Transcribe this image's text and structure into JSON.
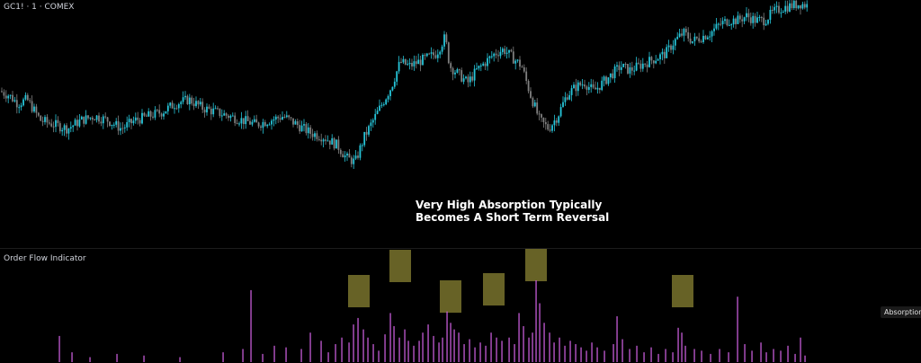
{
  "price_pane": {
    "symbol_label": "GC1! · 1 · COMEX"
  },
  "indicator_pane": {
    "title": "Order Flow Indicator",
    "tag": "Absorption"
  },
  "annotation": {
    "line1": "Very High Absorption Typically",
    "line2": "Becomes A Short Term Reversal"
  },
  "colors": {
    "background": "#000000",
    "candle_up": "#26c6da",
    "candle_down": "#808080",
    "volume_bar": "#c45bd6",
    "highlight_box": "#8a8333"
  },
  "chart_data": [
    {
      "type": "candlestick",
      "title": "GC1! · 1 · COMEX",
      "y_range": [
        0,
        100
      ],
      "trend_points": [
        [
          0,
          58
        ],
        [
          10,
          56
        ],
        [
          20,
          52
        ],
        [
          30,
          54
        ],
        [
          45,
          44
        ],
        [
          60,
          42
        ],
        [
          75,
          40
        ],
        [
          90,
          44
        ],
        [
          105,
          46
        ],
        [
          120,
          44
        ],
        [
          135,
          40
        ],
        [
          150,
          44
        ],
        [
          165,
          46
        ],
        [
          180,
          48
        ],
        [
          195,
          52
        ],
        [
          210,
          54
        ],
        [
          225,
          50
        ],
        [
          240,
          48
        ],
        [
          255,
          46
        ],
        [
          270,
          44
        ],
        [
          285,
          42
        ],
        [
          300,
          44
        ],
        [
          315,
          46
        ],
        [
          330,
          42
        ],
        [
          345,
          38
        ],
        [
          360,
          36
        ],
        [
          375,
          32
        ],
        [
          385,
          26
        ],
        [
          395,
          24
        ],
        [
          405,
          36
        ],
        [
          415,
          44
        ],
        [
          425,
          52
        ],
        [
          435,
          60
        ],
        [
          445,
          72
        ],
        [
          455,
          70
        ],
        [
          465,
          72
        ],
        [
          475,
          74
        ],
        [
          485,
          76
        ],
        [
          495,
          84
        ],
        [
          500,
          70
        ],
        [
          510,
          66
        ],
        [
          520,
          62
        ],
        [
          530,
          68
        ],
        [
          540,
          72
        ],
        [
          550,
          76
        ],
        [
          560,
          78
        ],
        [
          570,
          74
        ],
        [
          580,
          70
        ],
        [
          590,
          56
        ],
        [
          600,
          44
        ],
        [
          610,
          40
        ],
        [
          620,
          46
        ],
        [
          630,
          56
        ],
        [
          640,
          60
        ],
        [
          650,
          62
        ],
        [
          660,
          58
        ],
        [
          670,
          62
        ],
        [
          680,
          66
        ],
        [
          690,
          70
        ],
        [
          700,
          68
        ],
        [
          710,
          70
        ],
        [
          720,
          72
        ],
        [
          730,
          74
        ],
        [
          740,
          76
        ],
        [
          750,
          82
        ],
        [
          760,
          86
        ],
        [
          770,
          82
        ],
        [
          780,
          84
        ],
        [
          790,
          86
        ],
        [
          800,
          90
        ],
        [
          810,
          92
        ],
        [
          820,
          92
        ],
        [
          830,
          94
        ],
        [
          840,
          92
        ],
        [
          850,
          92
        ],
        [
          860,
          96
        ],
        [
          870,
          98
        ],
        [
          880,
          99
        ],
        [
          890,
          100
        ],
        [
          898,
          99
        ]
      ]
    },
    {
      "type": "bar",
      "title": "Order Flow Indicator",
      "y_range": [
        0,
        100
      ],
      "bars": [
        [
          66,
          32
        ],
        [
          80,
          12
        ],
        [
          100,
          6
        ],
        [
          130,
          10
        ],
        [
          160,
          8
        ],
        [
          200,
          6
        ],
        [
          248,
          12
        ],
        [
          270,
          16
        ],
        [
          279,
          88
        ],
        [
          292,
          10
        ],
        [
          305,
          20
        ],
        [
          318,
          18
        ],
        [
          335,
          16
        ],
        [
          345,
          36
        ],
        [
          357,
          26
        ],
        [
          365,
          12
        ],
        [
          373,
          22
        ],
        [
          380,
          30
        ],
        [
          388,
          24
        ],
        [
          393,
          46
        ],
        [
          398,
          54
        ],
        [
          404,
          40
        ],
        [
          409,
          30
        ],
        [
          415,
          22
        ],
        [
          421,
          14
        ],
        [
          428,
          34
        ],
        [
          434,
          60
        ],
        [
          438,
          44
        ],
        [
          444,
          30
        ],
        [
          450,
          40
        ],
        [
          454,
          26
        ],
        [
          460,
          20
        ],
        [
          466,
          26
        ],
        [
          470,
          36
        ],
        [
          476,
          46
        ],
        [
          482,
          32
        ],
        [
          488,
          24
        ],
        [
          492,
          30
        ],
        [
          497,
          62
        ],
        [
          501,
          48
        ],
        [
          505,
          40
        ],
        [
          510,
          36
        ],
        [
          516,
          22
        ],
        [
          522,
          28
        ],
        [
          528,
          18
        ],
        [
          534,
          24
        ],
        [
          540,
          20
        ],
        [
          546,
          36
        ],
        [
          552,
          30
        ],
        [
          558,
          26
        ],
        [
          566,
          30
        ],
        [
          572,
          22
        ],
        [
          577,
          60
        ],
        [
          582,
          44
        ],
        [
          588,
          30
        ],
        [
          592,
          36
        ],
        [
          596,
          100
        ],
        [
          600,
          72
        ],
        [
          605,
          48
        ],
        [
          611,
          36
        ],
        [
          616,
          24
        ],
        [
          622,
          30
        ],
        [
          628,
          20
        ],
        [
          634,
          26
        ],
        [
          640,
          22
        ],
        [
          646,
          18
        ],
        [
          652,
          14
        ],
        [
          658,
          24
        ],
        [
          664,
          18
        ],
        [
          672,
          14
        ],
        [
          682,
          22
        ],
        [
          686,
          56
        ],
        [
          692,
          28
        ],
        [
          700,
          16
        ],
        [
          708,
          20
        ],
        [
          716,
          12
        ],
        [
          724,
          18
        ],
        [
          732,
          10
        ],
        [
          740,
          16
        ],
        [
          748,
          12
        ],
        [
          754,
          42
        ],
        [
          758,
          36
        ],
        [
          762,
          20
        ],
        [
          772,
          16
        ],
        [
          780,
          14
        ],
        [
          790,
          10
        ],
        [
          800,
          16
        ],
        [
          810,
          12
        ],
        [
          820,
          80
        ],
        [
          828,
          22
        ],
        [
          836,
          14
        ],
        [
          846,
          24
        ],
        [
          852,
          12
        ],
        [
          860,
          16
        ],
        [
          868,
          14
        ],
        [
          876,
          20
        ],
        [
          884,
          10
        ],
        [
          890,
          30
        ],
        [
          895,
          8
        ]
      ],
      "highlights": [
        [
          399,
          324
        ],
        [
          445,
          296
        ],
        [
          501,
          330
        ],
        [
          549,
          322
        ],
        [
          596,
          295
        ],
        [
          759,
          324
        ]
      ],
      "annotation_tag": "Absorption"
    }
  ]
}
